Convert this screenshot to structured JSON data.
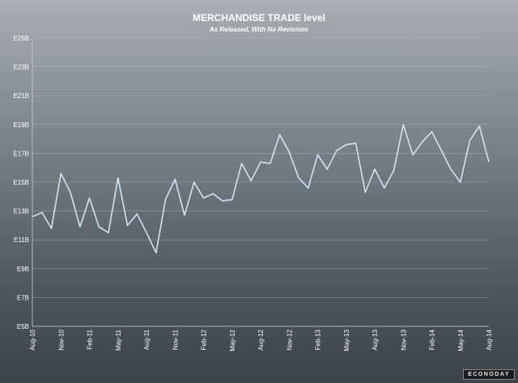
{
  "chart_data": {
    "type": "line",
    "title": "MERCHANDISE TRADE level",
    "subtitle": "As Released, With No Revisions",
    "xlabel": "",
    "ylabel": "",
    "ylim": [
      5,
      25
    ],
    "yticks": [
      {
        "value": 5,
        "label": "E5B"
      },
      {
        "value": 7,
        "label": "E7B"
      },
      {
        "value": 9,
        "label": "E9B"
      },
      {
        "value": 11,
        "label": "E11B"
      },
      {
        "value": 13,
        "label": "E13B"
      },
      {
        "value": 15,
        "label": "E15B"
      },
      {
        "value": 17,
        "label": "E17B"
      },
      {
        "value": 19,
        "label": "E19B"
      },
      {
        "value": 21,
        "label": "E21B"
      },
      {
        "value": 23,
        "label": "E23B"
      },
      {
        "value": 25,
        "label": "E25B"
      }
    ],
    "xticks": [
      {
        "index": 0,
        "label": "Aug-10"
      },
      {
        "index": 3,
        "label": "Nov-10"
      },
      {
        "index": 6,
        "label": "Feb-11"
      },
      {
        "index": 9,
        "label": "May-11"
      },
      {
        "index": 12,
        "label": "Aug-11"
      },
      {
        "index": 15,
        "label": "Nov-11"
      },
      {
        "index": 18,
        "label": "Feb-12"
      },
      {
        "index": 21,
        "label": "May-12"
      },
      {
        "index": 24,
        "label": "Aug-12"
      },
      {
        "index": 27,
        "label": "Nov-12"
      },
      {
        "index": 30,
        "label": "Feb-13"
      },
      {
        "index": 33,
        "label": "May-13"
      },
      {
        "index": 36,
        "label": "Aug-13"
      },
      {
        "index": 39,
        "label": "Nov-13"
      },
      {
        "index": 42,
        "label": "Feb-14"
      },
      {
        "index": 45,
        "label": "May-14"
      },
      {
        "index": 48,
        "label": "Aug-14"
      }
    ],
    "grid": true,
    "series": [
      {
        "color": "#cfe4f5",
        "values": [
          12.6,
          12.9,
          11.8,
          15.6,
          14.3,
          11.9,
          13.9,
          11.9,
          11.5,
          15.3,
          12.0,
          12.8,
          11.5,
          10.1,
          13.8,
          15.2,
          12.7,
          15.0,
          13.9,
          14.2,
          13.7,
          13.8,
          16.3,
          15.1,
          16.4,
          16.3,
          18.3,
          17.1,
          15.3,
          14.6,
          16.9,
          15.9,
          17.2,
          17.6,
          17.7,
          14.3,
          15.9,
          14.6,
          15.8,
          19.0,
          16.9,
          17.8,
          18.5,
          17.2,
          15.9,
          15.0,
          17.9,
          18.9,
          16.4
        ]
      }
    ]
  },
  "watermark": "ECONODAY"
}
